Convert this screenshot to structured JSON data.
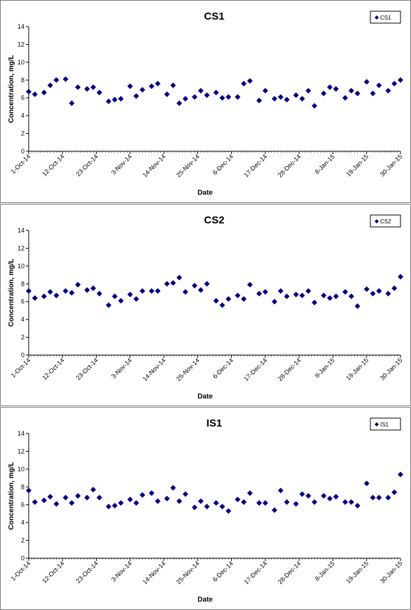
{
  "chart_data": [
    {
      "type": "scatter",
      "title": "CS1",
      "xlabel": "Date",
      "ylabel": "Concentration, mg/L",
      "ylim": [
        0,
        14
      ],
      "yticks": [
        "0",
        "2",
        "4",
        "6",
        "8",
        "10",
        "12",
        "14"
      ],
      "xlim": [
        "2014-10-01",
        "2015-01-30"
      ],
      "xtick_labels": [
        "1-Oct-14",
        "12-Oct-14",
        "23-Oct-14",
        "3-Nov-14",
        "14-Nov-14",
        "25-Nov-14",
        "6-Dec-14",
        "17-Dec-14",
        "28-Dec-14",
        "8-Jan-15",
        "19-Jan-15",
        "30-Jan-15"
      ],
      "grid": false,
      "legend": "top-right",
      "series": [
        {
          "name": "CS1",
          "color": "#000080",
          "x": [
            "2014-10-01",
            "2014-10-03",
            "2014-10-06",
            "2014-10-08",
            "2014-10-10",
            "2014-10-13",
            "2014-10-15",
            "2014-10-17",
            "2014-10-20",
            "2014-10-22",
            "2014-10-24",
            "2014-10-27",
            "2014-10-29",
            "2014-10-31",
            "2014-11-03",
            "2014-11-05",
            "2014-11-07",
            "2014-11-10",
            "2014-11-12",
            "2014-11-15",
            "2014-11-17",
            "2014-11-19",
            "2014-11-21",
            "2014-11-24",
            "2014-11-26",
            "2014-11-28",
            "2014-12-01",
            "2014-12-03",
            "2014-12-05",
            "2014-12-08",
            "2014-12-10",
            "2014-12-12",
            "2014-12-15",
            "2014-12-17",
            "2014-12-20",
            "2014-12-22",
            "2014-12-24",
            "2014-12-27",
            "2014-12-29",
            "2014-12-31",
            "2015-01-02",
            "2015-01-05",
            "2015-01-07",
            "2015-01-09",
            "2015-01-12",
            "2015-01-14",
            "2015-01-16",
            "2015-01-19",
            "2015-01-21",
            "2015-01-23",
            "2015-01-26",
            "2015-01-28",
            "2015-01-30"
          ],
          "y": [
            6.7,
            6.4,
            6.6,
            7.4,
            8.0,
            8.1,
            5.4,
            7.2,
            7.0,
            7.2,
            6.6,
            5.6,
            5.8,
            5.9,
            7.3,
            6.2,
            6.9,
            7.3,
            7.6,
            6.4,
            7.4,
            5.4,
            5.9,
            6.1,
            6.8,
            6.3,
            6.6,
            6.0,
            6.1,
            6.1,
            7.6,
            7.9,
            5.7,
            6.8,
            5.9,
            6.1,
            5.8,
            6.3,
            5.9,
            6.8,
            5.1,
            6.5,
            7.2,
            7.0,
            6.0,
            6.8,
            6.5,
            7.8,
            6.5,
            7.4,
            6.8,
            7.6,
            8.0
          ]
        }
      ]
    },
    {
      "type": "scatter",
      "title": "CS2",
      "xlabel": "Date",
      "ylabel": "Concentration, mg/L",
      "ylim": [
        0,
        14
      ],
      "yticks": [
        "0",
        "2",
        "4",
        "6",
        "8",
        "10",
        "12",
        "14"
      ],
      "xlim": [
        "2014-10-01",
        "2015-01-30"
      ],
      "xtick_labels": [
        "1-Oct-14",
        "12-Oct-14",
        "23-Oct-14",
        "3-Nov-14",
        "14-Nov-14",
        "25-Nov-14",
        "6-Dec-14",
        "17-Dec-14",
        "28-Dec-14",
        "8-Jan-15",
        "19-Jan-15",
        "30-Jan-15"
      ],
      "grid": false,
      "legend": "top-right",
      "series": [
        {
          "name": "CS2",
          "color": "#000080",
          "x": [
            "2014-10-01",
            "2014-10-03",
            "2014-10-06",
            "2014-10-08",
            "2014-10-10",
            "2014-10-13",
            "2014-10-15",
            "2014-10-17",
            "2014-10-20",
            "2014-10-22",
            "2014-10-24",
            "2014-10-27",
            "2014-10-29",
            "2014-10-31",
            "2014-11-03",
            "2014-11-05",
            "2014-11-07",
            "2014-11-10",
            "2014-11-12",
            "2014-11-15",
            "2014-11-17",
            "2014-11-19",
            "2014-11-21",
            "2014-11-24",
            "2014-11-26",
            "2014-11-28",
            "2014-12-01",
            "2014-12-03",
            "2014-12-05",
            "2014-12-08",
            "2014-12-10",
            "2014-12-12",
            "2014-12-15",
            "2014-12-17",
            "2014-12-20",
            "2014-12-22",
            "2014-12-24",
            "2014-12-27",
            "2014-12-29",
            "2014-12-31",
            "2015-01-02",
            "2015-01-05",
            "2015-01-07",
            "2015-01-09",
            "2015-01-12",
            "2015-01-14",
            "2015-01-16",
            "2015-01-19",
            "2015-01-21",
            "2015-01-23",
            "2015-01-26",
            "2015-01-28",
            "2015-01-30"
          ],
          "y": [
            7.2,
            6.4,
            6.6,
            7.1,
            6.7,
            7.2,
            7.0,
            7.9,
            7.3,
            7.5,
            6.9,
            5.6,
            6.6,
            6.1,
            6.8,
            6.3,
            7.2,
            7.2,
            7.2,
            8.0,
            8.1,
            8.7,
            7.1,
            7.8,
            7.3,
            8.0,
            6.1,
            5.6,
            6.3,
            6.7,
            6.3,
            7.9,
            6.9,
            7.1,
            6.0,
            7.2,
            6.6,
            6.8,
            6.7,
            7.2,
            5.9,
            6.7,
            6.4,
            6.6,
            7.1,
            6.6,
            5.5,
            7.4,
            6.9,
            7.2,
            6.9,
            7.5,
            8.8
          ]
        }
      ]
    },
    {
      "type": "scatter",
      "title": "IS1",
      "xlabel": "Date",
      "ylabel": "Concentration, mg/L",
      "ylim": [
        0,
        14
      ],
      "yticks": [
        "0",
        "2",
        "4",
        "6",
        "8",
        "10",
        "12",
        "14"
      ],
      "xlim": [
        "2014-10-01",
        "2015-01-30"
      ],
      "xtick_labels": [
        "1-Oct-14",
        "12-Oct-14",
        "23-Oct-14",
        "3-Nov-14",
        "14-Nov-14",
        "25-Nov-14",
        "6-Dec-14",
        "17-Dec-14",
        "28-Dec-14",
        "8-Jan-15",
        "19-Jan-15",
        "30-Jan-15"
      ],
      "grid": false,
      "legend": "top-right",
      "series": [
        {
          "name": "IS1",
          "color": "#000080",
          "x": [
            "2014-10-01",
            "2014-10-03",
            "2014-10-06",
            "2014-10-08",
            "2014-10-10",
            "2014-10-13",
            "2014-10-15",
            "2014-10-17",
            "2014-10-20",
            "2014-10-22",
            "2014-10-24",
            "2014-10-27",
            "2014-10-29",
            "2014-10-31",
            "2014-11-03",
            "2014-11-05",
            "2014-11-07",
            "2014-11-10",
            "2014-11-12",
            "2014-11-15",
            "2014-11-17",
            "2014-11-19",
            "2014-11-21",
            "2014-11-24",
            "2014-11-26",
            "2014-11-28",
            "2014-12-01",
            "2014-12-03",
            "2014-12-05",
            "2014-12-08",
            "2014-12-10",
            "2014-12-12",
            "2014-12-15",
            "2014-12-17",
            "2014-12-20",
            "2014-12-22",
            "2014-12-24",
            "2014-12-27",
            "2014-12-29",
            "2014-12-31",
            "2015-01-02",
            "2015-01-05",
            "2015-01-07",
            "2015-01-09",
            "2015-01-12",
            "2015-01-14",
            "2015-01-16",
            "2015-01-19",
            "2015-01-21",
            "2015-01-23",
            "2015-01-26",
            "2015-01-28",
            "2015-01-30"
          ],
          "y": [
            7.6,
            6.3,
            6.5,
            6.9,
            6.1,
            6.8,
            6.2,
            7.0,
            6.8,
            7.7,
            6.8,
            5.8,
            5.9,
            6.2,
            6.6,
            6.2,
            7.1,
            7.3,
            6.4,
            6.7,
            7.9,
            6.4,
            7.2,
            5.7,
            6.4,
            5.8,
            6.2,
            5.8,
            5.3,
            6.6,
            6.3,
            7.3,
            6.2,
            6.2,
            5.4,
            7.6,
            6.3,
            6.1,
            7.2,
            7.0,
            6.3,
            7.0,
            6.7,
            6.9,
            6.3,
            6.3,
            5.9,
            8.4,
            6.8,
            6.8,
            6.8,
            7.4,
            9.4
          ]
        }
      ]
    }
  ]
}
